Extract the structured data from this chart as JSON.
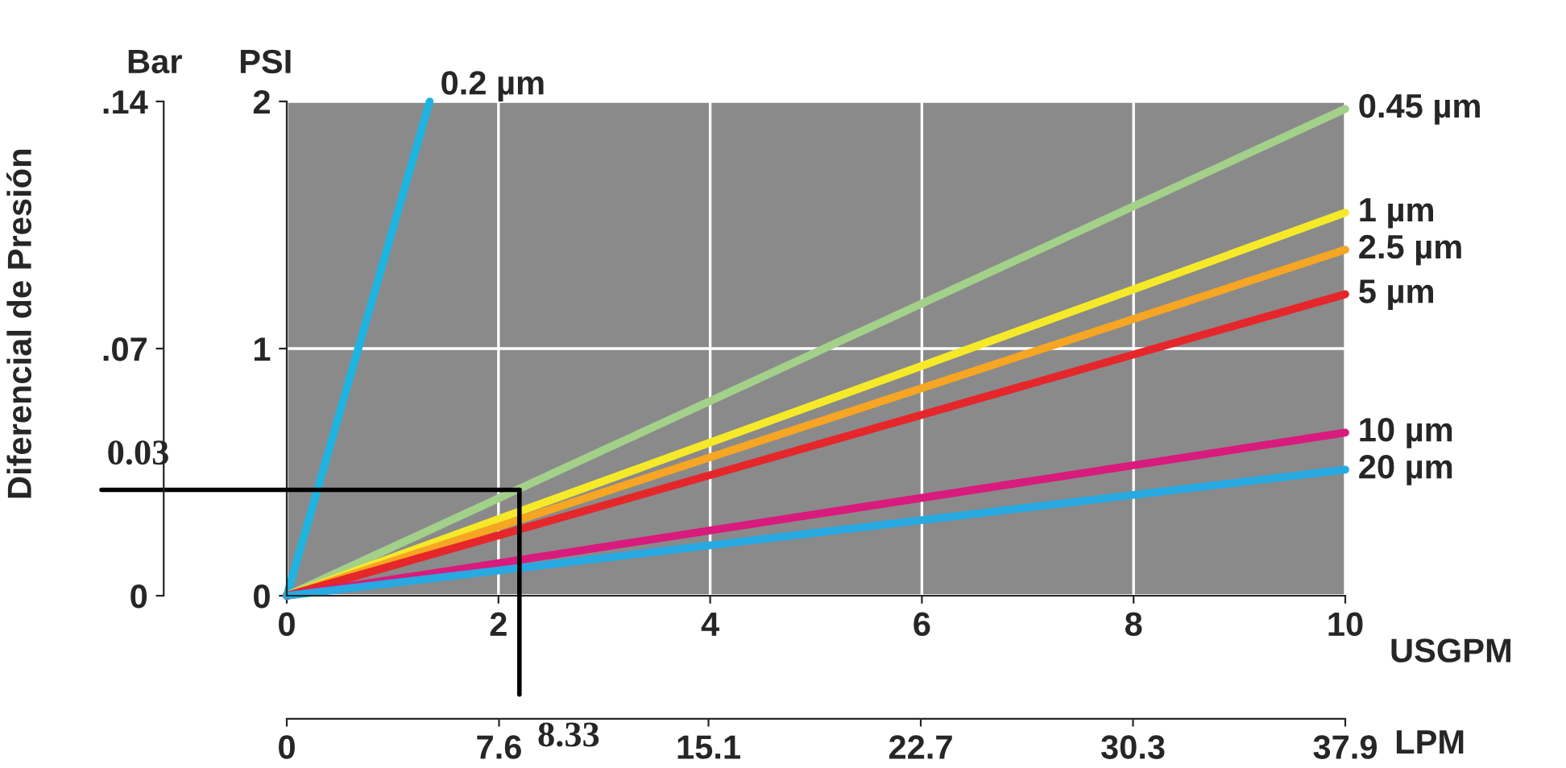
{
  "chart_data": {
    "type": "line",
    "y2label": "Diferencial de Presión",
    "xlabel": "USGPM",
    "x2label": "LPM",
    "annotations": [
      "Bar",
      "PSI"
    ],
    "x": [
      0,
      10
    ],
    "series": [
      {
        "name": "0.2 µm",
        "color": "#1fb4e0",
        "x": [
          0,
          1.35
        ],
        "values": [
          0,
          2
        ]
      },
      {
        "name": "0.45 µm",
        "color": "#a3d18a",
        "values": [
          0,
          1.97
        ]
      },
      {
        "name": "1 µm",
        "color": "#f5e92a",
        "values": [
          0,
          1.55
        ]
      },
      {
        "name": "2.5 µm",
        "color": "#f6a623",
        "values": [
          0,
          1.4
        ]
      },
      {
        "name": "5 µm",
        "color": "#e5262a",
        "values": [
          0,
          1.22
        ]
      },
      {
        "name": "10 µm",
        "color": "#d81b7d",
        "values": [
          0,
          0.66
        ]
      },
      {
        "name": "20 µm",
        "color": "#27a9e1",
        "values": [
          0,
          0.51
        ]
      }
    ],
    "xlim": [
      0,
      10
    ],
    "xticks": [
      0,
      2,
      4,
      6,
      8,
      10
    ],
    "ylim": [
      0,
      2
    ],
    "yticks": [
      0,
      1,
      2
    ],
    "y2lim": [
      0,
      0.14
    ],
    "y2ticks": [
      {
        "value": 0,
        "label": "0"
      },
      {
        "value": 0.07,
        "label": ".07"
      },
      {
        "value": 0.14,
        "label": ".14"
      }
    ],
    "x2lim": [
      0,
      37.9
    ],
    "x2ticks": [
      0,
      7.6,
      15.1,
      22.7,
      30.3,
      37.9
    ],
    "ref_lines": [
      {
        "axis": "y2",
        "value": 0.03,
        "label": "0.03",
        "color": "#000000"
      },
      {
        "axis": "x2",
        "value": 8.33,
        "label": "8.33",
        "color": "#000000"
      }
    ],
    "grid": true,
    "legend": false,
    "marker": "none",
    "line_style": "solid"
  }
}
